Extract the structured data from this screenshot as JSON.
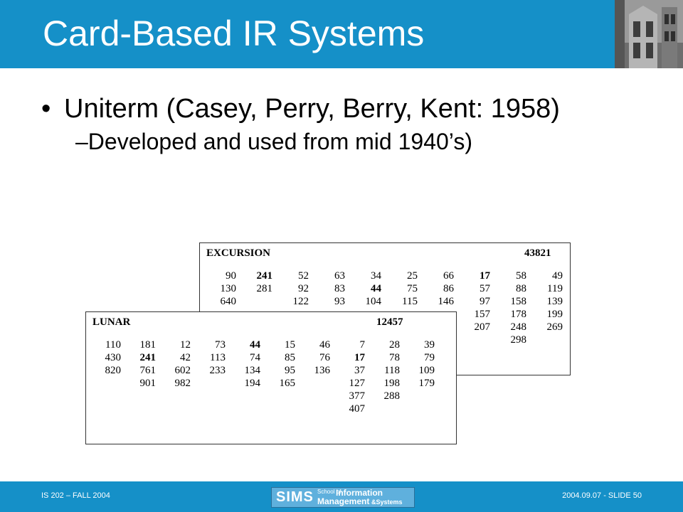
{
  "slide": {
    "title": "Card-Based IR Systems",
    "bullet1": "Uniterm (Casey, Perry, Berry, Kent: 1958)",
    "bullet1_marker": "•",
    "bullet2": "–Developed and used from mid 1940’s)"
  },
  "cards": {
    "excursion": {
      "term": "EXCURSION",
      "number": "43821",
      "rows": [
        [
          "90",
          "241",
          "52",
          "63",
          "34",
          "25",
          "66",
          "17",
          "58",
          "49"
        ],
        [
          "130",
          "281",
          "92",
          "83",
          "44",
          "75",
          "86",
          "57",
          "88",
          "119"
        ],
        [
          "640",
          "",
          "122",
          "93",
          "104",
          "115",
          "146",
          "97",
          "158",
          "139"
        ],
        [
          "",
          "",
          "",
          "",
          "",
          "",
          "",
          "157",
          "178",
          "199"
        ],
        [
          "",
          "",
          "",
          "",
          "",
          "",
          "",
          "207",
          "248",
          "269"
        ],
        [
          "",
          "",
          "",
          "",
          "",
          "",
          "",
          "",
          "298",
          ""
        ]
      ]
    },
    "lunar": {
      "term": "LUNAR",
      "number": "12457",
      "rows": [
        [
          "110",
          "181",
          "12",
          "73",
          "44",
          "15",
          "46",
          "7",
          "28",
          "39"
        ],
        [
          "430",
          "241",
          "42",
          "113",
          "74",
          "85",
          "76",
          "17",
          "78",
          "79"
        ],
        [
          "820",
          "761",
          "602",
          "233",
          "134",
          "95",
          "136",
          "37",
          "118",
          "109"
        ],
        [
          "",
          "901",
          "982",
          "",
          "194",
          "165",
          "",
          "127",
          "198",
          "179"
        ],
        [
          "",
          "",
          "",
          "",
          "",
          "",
          "",
          "377",
          "288",
          ""
        ],
        [
          "",
          "",
          "",
          "",
          "",
          "",
          "",
          "407",
          "",
          ""
        ]
      ]
    }
  },
  "footer": {
    "left": "IS 202 – FALL 2004",
    "right": "2004.09.07 - SLIDE 50",
    "logo_sims": "SIMS",
    "logo_school_of": "School of",
    "logo_information": "Information",
    "logo_management": "Management",
    "logo_systems": "&Systems"
  },
  "colors": {
    "accent": "#1590c8"
  }
}
